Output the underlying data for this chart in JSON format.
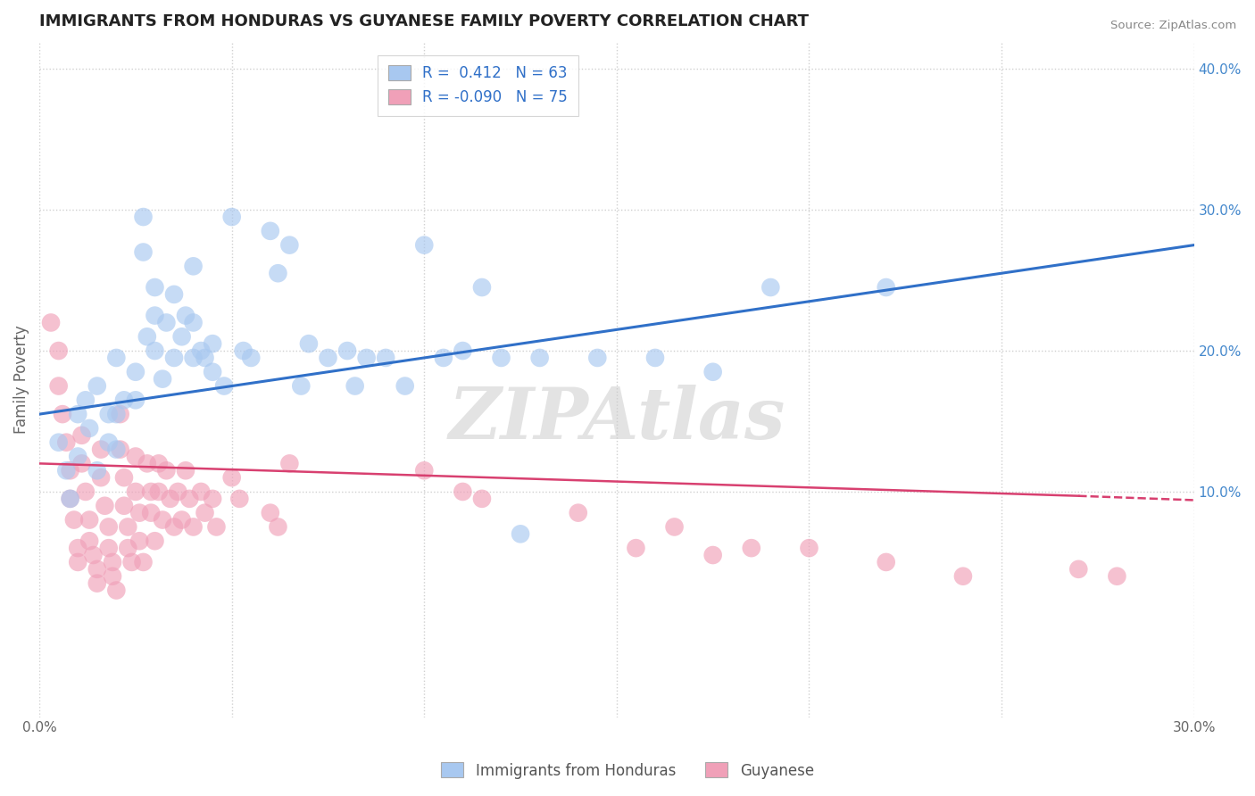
{
  "title": "IMMIGRANTS FROM HONDURAS VS GUYANESE FAMILY POVERTY CORRELATION CHART",
  "source": "Source: ZipAtlas.com",
  "ylabel": "Family Poverty",
  "x_min": 0.0,
  "x_max": 0.3,
  "y_min": -0.06,
  "y_max": 0.42,
  "y_ticks": [
    0.1,
    0.2,
    0.3,
    0.4
  ],
  "y_tick_labels": [
    "10.0%",
    "20.0%",
    "30.0%",
    "40.0%"
  ],
  "x_ticks": [
    0.0,
    0.05,
    0.1,
    0.15,
    0.2,
    0.25,
    0.3
  ],
  "x_tick_labels": [
    "0.0%",
    "",
    "",
    "",
    "",
    "",
    "30.0%"
  ],
  "blue_color": "#a8c8f0",
  "pink_color": "#f0a0b8",
  "blue_line_color": "#3070c8",
  "pink_line_color": "#d84070",
  "legend_label_blue": "Immigrants from Honduras",
  "legend_label_pink": "Guyanese",
  "R_blue": 0.412,
  "N_blue": 63,
  "R_pink": -0.09,
  "N_pink": 75,
  "watermark": "ZIPAtlas",
  "background_color": "#ffffff",
  "grid_color": "#d0d0d0",
  "title_color": "#222222",
  "blue_scatter": [
    [
      0.005,
      0.135
    ],
    [
      0.007,
      0.115
    ],
    [
      0.008,
      0.095
    ],
    [
      0.01,
      0.155
    ],
    [
      0.01,
      0.125
    ],
    [
      0.012,
      0.165
    ],
    [
      0.013,
      0.145
    ],
    [
      0.015,
      0.175
    ],
    [
      0.015,
      0.115
    ],
    [
      0.018,
      0.155
    ],
    [
      0.018,
      0.135
    ],
    [
      0.02,
      0.195
    ],
    [
      0.02,
      0.155
    ],
    [
      0.02,
      0.13
    ],
    [
      0.022,
      0.165
    ],
    [
      0.025,
      0.185
    ],
    [
      0.025,
      0.165
    ],
    [
      0.027,
      0.27
    ],
    [
      0.027,
      0.295
    ],
    [
      0.028,
      0.21
    ],
    [
      0.03,
      0.245
    ],
    [
      0.03,
      0.225
    ],
    [
      0.03,
      0.2
    ],
    [
      0.032,
      0.18
    ],
    [
      0.033,
      0.22
    ],
    [
      0.035,
      0.24
    ],
    [
      0.035,
      0.195
    ],
    [
      0.037,
      0.21
    ],
    [
      0.038,
      0.225
    ],
    [
      0.04,
      0.26
    ],
    [
      0.04,
      0.22
    ],
    [
      0.04,
      0.195
    ],
    [
      0.042,
      0.2
    ],
    [
      0.043,
      0.195
    ],
    [
      0.045,
      0.205
    ],
    [
      0.045,
      0.185
    ],
    [
      0.048,
      0.175
    ],
    [
      0.05,
      0.295
    ],
    [
      0.053,
      0.2
    ],
    [
      0.055,
      0.195
    ],
    [
      0.06,
      0.285
    ],
    [
      0.062,
      0.255
    ],
    [
      0.065,
      0.275
    ],
    [
      0.068,
      0.175
    ],
    [
      0.07,
      0.205
    ],
    [
      0.075,
      0.195
    ],
    [
      0.08,
      0.2
    ],
    [
      0.082,
      0.175
    ],
    [
      0.085,
      0.195
    ],
    [
      0.09,
      0.195
    ],
    [
      0.095,
      0.175
    ],
    [
      0.1,
      0.275
    ],
    [
      0.105,
      0.195
    ],
    [
      0.11,
      0.2
    ],
    [
      0.115,
      0.245
    ],
    [
      0.12,
      0.195
    ],
    [
      0.125,
      0.07
    ],
    [
      0.13,
      0.195
    ],
    [
      0.145,
      0.195
    ],
    [
      0.16,
      0.195
    ],
    [
      0.175,
      0.185
    ],
    [
      0.19,
      0.245
    ],
    [
      0.22,
      0.245
    ]
  ],
  "pink_scatter": [
    [
      0.003,
      0.22
    ],
    [
      0.005,
      0.2
    ],
    [
      0.005,
      0.175
    ],
    [
      0.006,
      0.155
    ],
    [
      0.007,
      0.135
    ],
    [
      0.008,
      0.115
    ],
    [
      0.008,
      0.095
    ],
    [
      0.009,
      0.08
    ],
    [
      0.01,
      0.06
    ],
    [
      0.01,
      0.05
    ],
    [
      0.011,
      0.14
    ],
    [
      0.011,
      0.12
    ],
    [
      0.012,
      0.1
    ],
    [
      0.013,
      0.08
    ],
    [
      0.013,
      0.065
    ],
    [
      0.014,
      0.055
    ],
    [
      0.015,
      0.045
    ],
    [
      0.015,
      0.035
    ],
    [
      0.016,
      0.13
    ],
    [
      0.016,
      0.11
    ],
    [
      0.017,
      0.09
    ],
    [
      0.018,
      0.075
    ],
    [
      0.018,
      0.06
    ],
    [
      0.019,
      0.05
    ],
    [
      0.019,
      0.04
    ],
    [
      0.02,
      0.03
    ],
    [
      0.021,
      0.155
    ],
    [
      0.021,
      0.13
    ],
    [
      0.022,
      0.11
    ],
    [
      0.022,
      0.09
    ],
    [
      0.023,
      0.075
    ],
    [
      0.023,
      0.06
    ],
    [
      0.024,
      0.05
    ],
    [
      0.025,
      0.125
    ],
    [
      0.025,
      0.1
    ],
    [
      0.026,
      0.085
    ],
    [
      0.026,
      0.065
    ],
    [
      0.027,
      0.05
    ],
    [
      0.028,
      0.12
    ],
    [
      0.029,
      0.1
    ],
    [
      0.029,
      0.085
    ],
    [
      0.03,
      0.065
    ],
    [
      0.031,
      0.12
    ],
    [
      0.031,
      0.1
    ],
    [
      0.032,
      0.08
    ],
    [
      0.033,
      0.115
    ],
    [
      0.034,
      0.095
    ],
    [
      0.035,
      0.075
    ],
    [
      0.036,
      0.1
    ],
    [
      0.037,
      0.08
    ],
    [
      0.038,
      0.115
    ],
    [
      0.039,
      0.095
    ],
    [
      0.04,
      0.075
    ],
    [
      0.042,
      0.1
    ],
    [
      0.043,
      0.085
    ],
    [
      0.045,
      0.095
    ],
    [
      0.046,
      0.075
    ],
    [
      0.05,
      0.11
    ],
    [
      0.052,
      0.095
    ],
    [
      0.06,
      0.085
    ],
    [
      0.062,
      0.075
    ],
    [
      0.065,
      0.12
    ],
    [
      0.1,
      0.115
    ],
    [
      0.11,
      0.1
    ],
    [
      0.115,
      0.095
    ],
    [
      0.14,
      0.085
    ],
    [
      0.155,
      0.06
    ],
    [
      0.165,
      0.075
    ],
    [
      0.175,
      0.055
    ],
    [
      0.185,
      0.06
    ],
    [
      0.2,
      0.06
    ],
    [
      0.22,
      0.05
    ],
    [
      0.24,
      0.04
    ],
    [
      0.27,
      0.045
    ],
    [
      0.28,
      0.04
    ]
  ]
}
